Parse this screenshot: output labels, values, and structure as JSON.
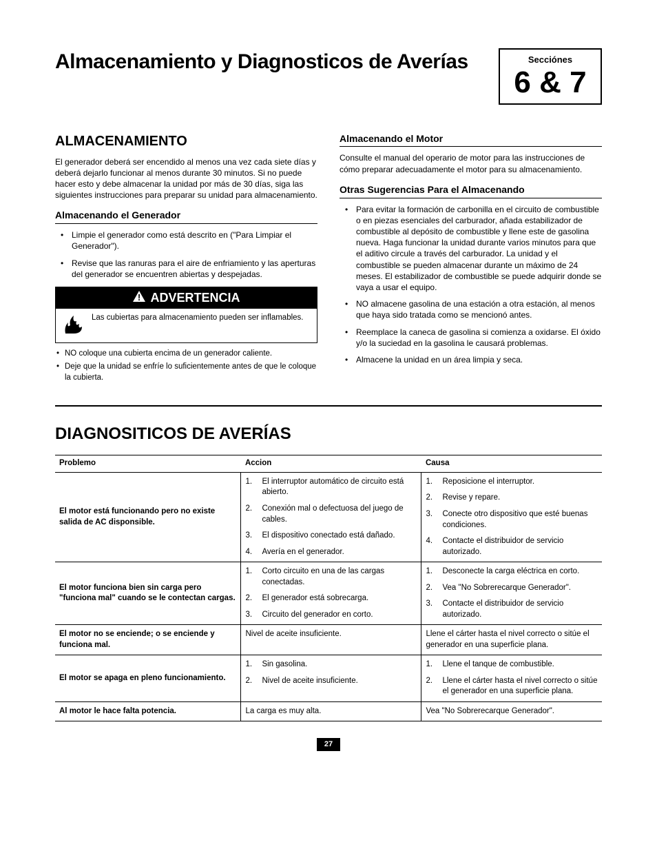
{
  "header": {
    "title": "Almacenamiento y Diagnosticos de Averías",
    "section_label": "Secciónes",
    "section_number": "6 & 7"
  },
  "left_column": {
    "h_major": "ALMACENAMIENTO",
    "intro": "El generador deberá ser encendido al menos una vez cada siete días y deberá dejarlo funcionar al menos durante 30 minutos. Si no puede hacer esto y debe almacenar la unidad por más de 30 días, siga las siguientes instrucciones para preparar su unidad para almacenamiento.",
    "h_sub1": "Almacenando el Generador",
    "bullets1": [
      "Limpie el generador como está descrito en (\"Para Limpiar el Generador\").",
      "Revise que las ranuras para el aire de enfriamiento y las aperturas del generador se encuentren abiertas y despejadas."
    ],
    "warning": {
      "title": "ADVERTENCIA",
      "body": "Las cubiertas para almacenamiento pueden ser inflamables.",
      "subs": [
        "NO coloque una cubierta encima de un generador caliente.",
        "Deje que la unidad se enfríe lo suficientemente antes de que le coloque la cubierta."
      ]
    }
  },
  "right_column": {
    "h_sub1": "Almacenando el Motor",
    "p1": "Consulte el manual del operario de motor para las instrucciones de cómo preparar adecuadamente el motor para su almacenamiento.",
    "h_sub2": "Otras Sugerencias Para el Almacenando",
    "bullets": [
      "Para evitar la formación de carbonilla en el circuito de combustible o en piezas esenciales del carburador, añada estabilizador de combustible al depósito de combustible y llene este de gasolina nueva. Haga funcionar la unidad durante varios minutos para que el aditivo circule a través del carburador. La unidad y el combustible se pueden almacenar durante un máximo de 24 meses. El estabilizador de combustible se puede adquirir donde se vaya a usar el equipo.",
      "NO almacene gasolina de una estación a otra estación, al menos que haya sido tratada como se mencionó antes.",
      "Reemplace la caneca de gasolina si comienza a oxidarse. El óxido y/o la suciedad en la gasolina le causará problemas.",
      "Almacene la unidad en un área limpia y seca."
    ]
  },
  "diagnostics": {
    "title": "DIAGNOSITICOS DE AVERÍAS",
    "columns": [
      "Problemo",
      "Accion",
      "Causa"
    ],
    "rows": [
      {
        "problem": "El motor está funcionando pero no existe salida de AC disponsible.",
        "actions": [
          "El interruptor automático de circuito está abierto.",
          "Conexión mal o defectuosa del juego de cables.",
          "El dispositivo conectado está dañado.",
          "Avería en el generador."
        ],
        "causes": [
          "Reposicione el interruptor.",
          "Revise y repare.",
          "Conecte otro dispositivo que esté buenas condiciones.",
          "Contacte el distribuidor de servicio autorizado."
        ]
      },
      {
        "problem": "El motor funciona bien sin carga pero \"funciona mal\" cuando se le contectan cargas.",
        "actions": [
          "Corto circuito en una de las cargas conectadas.",
          "El generador está sobrecarga.",
          "Circuito del generador en corto."
        ],
        "causes": [
          "Desconecte la carga eléctrica en corto.",
          "Vea \"No Sobrerecarque Generador\".",
          "Contacte el distribuidor de servicio autorizado."
        ]
      },
      {
        "problem": "El motor no se enciende; o se enciende y funciona mal.",
        "action_plain": "Nivel de aceite insuficiente.",
        "cause_plain": "Llene el cárter hasta el nivel correcto o sitúe el generador en una superficie plana."
      },
      {
        "problem": "El motor se apaga en pleno funcionamiento.",
        "actions": [
          "Sin gasolina.",
          "Nivel de aceite insuficiente."
        ],
        "causes": [
          "Llene el tanque de combustible.",
          "Llene el cárter hasta el nivel correcto o sitúe el generador en una superficie plana."
        ]
      },
      {
        "problem": "Al motor le hace falta potencia.",
        "action_plain": "La carga es muy alta.",
        "cause_plain": "Vea \"No Sobrerecarque Generador\"."
      }
    ]
  },
  "page_number": "27",
  "colors": {
    "text": "#000000",
    "bg": "#ffffff",
    "rule": "#000000"
  }
}
